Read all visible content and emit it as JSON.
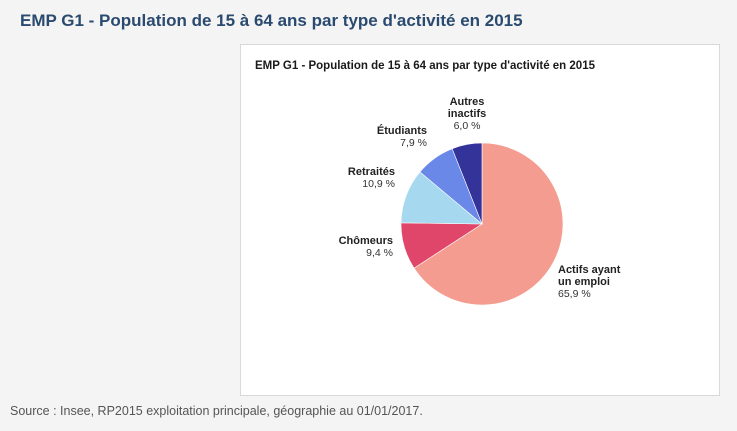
{
  "page": {
    "title": "EMP G1 - Population de 15 à 64 ans par type d'activité en 2015",
    "source": "Source : Insee, RP2015 exploitation principale, géographie au 01/01/2017."
  },
  "chart_data": {
    "type": "pie",
    "title": "EMP G1 - Population de 15 à 64 ans par type d'activité en 2015",
    "slices": [
      {
        "label": [
          "Actifs ayant",
          "un emploi"
        ],
        "value": 65.9,
        "value_label": "65,9 %",
        "color": "#f59c90"
      },
      {
        "label": [
          "Chômeurs"
        ],
        "value": 9.4,
        "value_label": "9,4 %",
        "color": "#e0456a"
      },
      {
        "label": [
          "Retraités"
        ],
        "value": 10.9,
        "value_label": "10,9 %",
        "color": "#a6d8ef"
      },
      {
        "label": [
          "Étudiants"
        ],
        "value": 7.9,
        "value_label": "7,9 %",
        "color": "#6a88e8"
      },
      {
        "label": [
          "Autres",
          "inactifs"
        ],
        "value": 6.0,
        "value_label": "6,0 %",
        "color": "#333399"
      }
    ]
  }
}
